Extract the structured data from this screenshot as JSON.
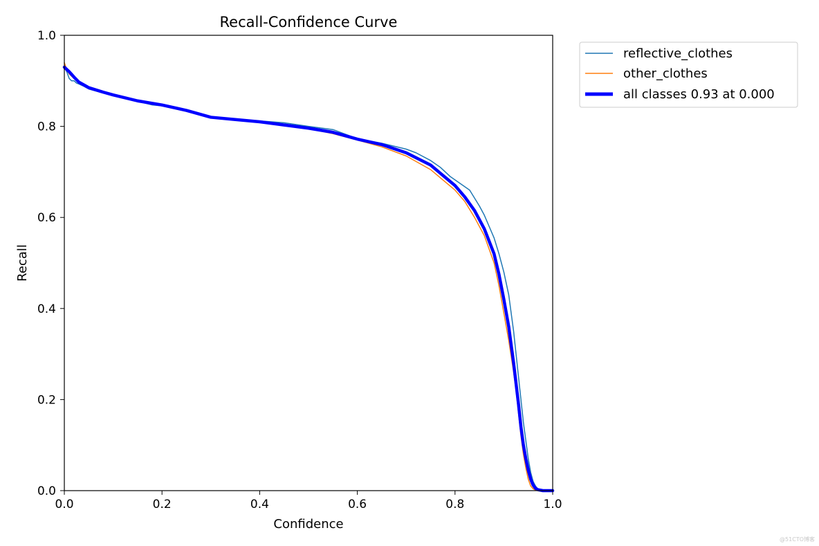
{
  "chart_data": {
    "type": "line",
    "title": "Recall-Confidence Curve",
    "xlabel": "Confidence",
    "ylabel": "Recall",
    "xlim": [
      0,
      1
    ],
    "ylim": [
      0,
      1
    ],
    "xticks": [
      "0.0",
      "0.2",
      "0.4",
      "0.6",
      "0.8",
      "1.0"
    ],
    "yticks": [
      "0.0",
      "0.2",
      "0.4",
      "0.6",
      "0.8",
      "1.0"
    ],
    "grid": false,
    "legend_position": "outside-top-right",
    "series": [
      {
        "name": "reflective_clothes",
        "color": "#1f77b4",
        "x": [
          0.0,
          0.005,
          0.01,
          0.015,
          0.02,
          0.025,
          0.03,
          0.04,
          0.05,
          0.06,
          0.08,
          0.1,
          0.13,
          0.15,
          0.18,
          0.2,
          0.25,
          0.3,
          0.35,
          0.4,
          0.45,
          0.5,
          0.55,
          0.6,
          0.65,
          0.7,
          0.72,
          0.75,
          0.77,
          0.79,
          0.81,
          0.83,
          0.85,
          0.86,
          0.87,
          0.88,
          0.89,
          0.9,
          0.91,
          0.92,
          0.925,
          0.93,
          0.935,
          0.94,
          0.945,
          0.95,
          0.955,
          0.96,
          0.965,
          0.97,
          0.975,
          0.98,
          0.99,
          1.0
        ],
        "y": [
          0.93,
          0.92,
          0.905,
          0.9,
          0.9,
          0.895,
          0.893,
          0.888,
          0.882,
          0.879,
          0.873,
          0.868,
          0.861,
          0.855,
          0.847,
          0.845,
          0.833,
          0.82,
          0.815,
          0.812,
          0.808,
          0.8,
          0.793,
          0.773,
          0.763,
          0.75,
          0.742,
          0.725,
          0.71,
          0.69,
          0.675,
          0.66,
          0.625,
          0.605,
          0.58,
          0.555,
          0.52,
          0.48,
          0.43,
          0.35,
          0.3,
          0.25,
          0.2,
          0.15,
          0.11,
          0.07,
          0.04,
          0.02,
          0.01,
          0.003,
          0.001,
          0.0,
          0.0,
          0.0
        ]
      },
      {
        "name": "other_clothes",
        "color": "#ff7f0e",
        "x": [
          0.0,
          0.005,
          0.01,
          0.02,
          0.03,
          0.05,
          0.08,
          0.1,
          0.15,
          0.2,
          0.25,
          0.3,
          0.35,
          0.4,
          0.45,
          0.5,
          0.55,
          0.6,
          0.65,
          0.7,
          0.75,
          0.8,
          0.82,
          0.84,
          0.86,
          0.88,
          0.89,
          0.9,
          0.91,
          0.92,
          0.925,
          0.93,
          0.935,
          0.94,
          0.945,
          0.95,
          0.955,
          0.96,
          0.965,
          0.97,
          1.0
        ],
        "y": [
          0.94,
          0.925,
          0.915,
          0.905,
          0.895,
          0.884,
          0.875,
          0.868,
          0.855,
          0.845,
          0.833,
          0.82,
          0.815,
          0.81,
          0.802,
          0.795,
          0.784,
          0.77,
          0.755,
          0.735,
          0.705,
          0.66,
          0.635,
          0.6,
          0.56,
          0.5,
          0.45,
          0.39,
          0.33,
          0.26,
          0.22,
          0.17,
          0.12,
          0.08,
          0.05,
          0.025,
          0.01,
          0.004,
          0.001,
          0.0,
          0.0
        ]
      },
      {
        "name": "all classes 0.93 at 0.000",
        "color": "#0000ff",
        "x": [
          0.0,
          0.01,
          0.02,
          0.03,
          0.05,
          0.08,
          0.1,
          0.15,
          0.2,
          0.25,
          0.3,
          0.35,
          0.4,
          0.45,
          0.5,
          0.55,
          0.6,
          0.65,
          0.7,
          0.75,
          0.8,
          0.82,
          0.84,
          0.86,
          0.88,
          0.89,
          0.9,
          0.91,
          0.92,
          0.925,
          0.93,
          0.935,
          0.94,
          0.945,
          0.95,
          0.955,
          0.96,
          0.965,
          0.97,
          0.98,
          1.0
        ],
        "y": [
          0.93,
          0.92,
          0.908,
          0.897,
          0.885,
          0.875,
          0.869,
          0.856,
          0.847,
          0.835,
          0.82,
          0.815,
          0.81,
          0.803,
          0.796,
          0.787,
          0.772,
          0.76,
          0.742,
          0.715,
          0.67,
          0.645,
          0.615,
          0.575,
          0.52,
          0.475,
          0.42,
          0.36,
          0.28,
          0.235,
          0.19,
          0.14,
          0.1,
          0.07,
          0.045,
          0.025,
          0.012,
          0.005,
          0.002,
          0.0,
          0.0
        ]
      }
    ]
  },
  "watermark": "@51CTO博客"
}
